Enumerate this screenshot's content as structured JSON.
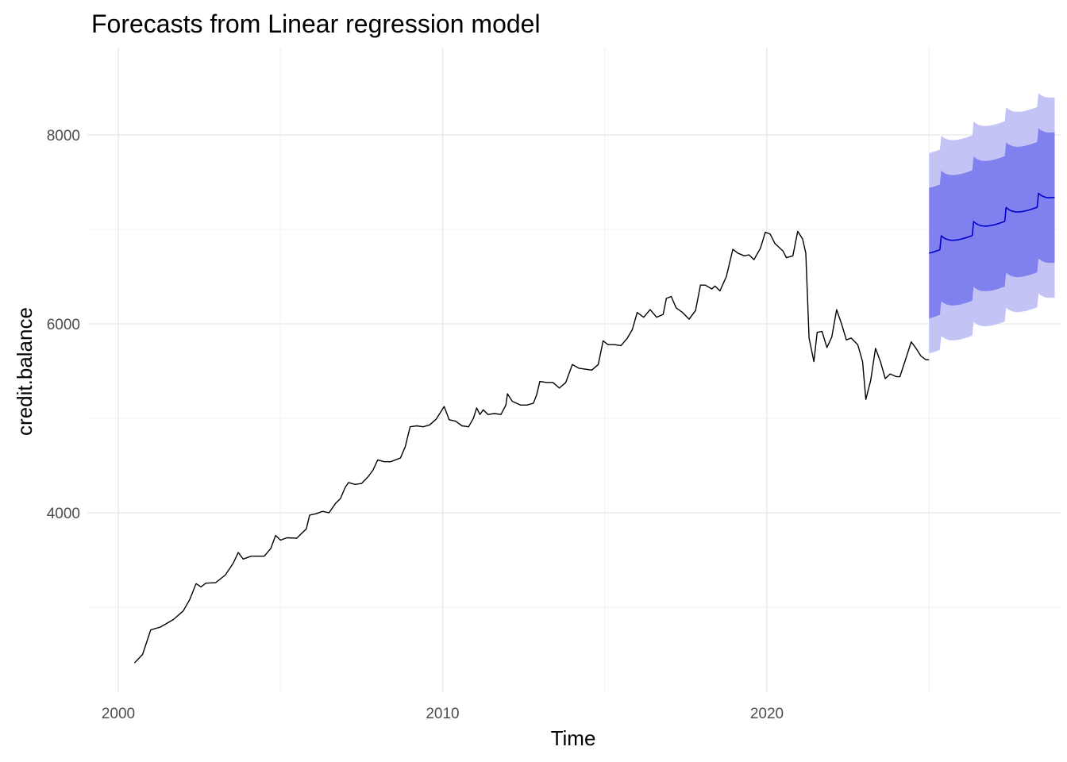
{
  "chart_data": {
    "type": "line",
    "title": "Forecasts from Linear regression model",
    "xlabel": "Time",
    "ylabel": "credit.balance",
    "xlim": [
      1999.5,
      2027.9
    ],
    "ylim": [
      2550,
      8750
    ],
    "x_ticks": [
      2000,
      2010,
      2020
    ],
    "x_tick_labels": [
      "2000",
      "2010",
      "2020"
    ],
    "x_minor_ticks": [
      2005,
      2015,
      2025
    ],
    "y_ticks": [
      4000,
      6000,
      8000
    ],
    "y_tick_labels": [
      "4000",
      "6000",
      "8000"
    ],
    "y_minor_ticks": [
      3000,
      5000,
      7000
    ],
    "grid": true,
    "legend": "none",
    "colors": {
      "history": "#000000",
      "forecast": "#0000cc",
      "band_80": "#8080ee",
      "band_95": "#c3c3f5",
      "grid": "#ebebeb"
    },
    "history_knots": [
      [
        2000.5,
        2410
      ],
      [
        2000.75,
        2500
      ],
      [
        2001.0,
        2760
      ],
      [
        2001.3,
        2790
      ],
      [
        2001.7,
        2870
      ],
      [
        2002.0,
        2960
      ],
      [
        2002.2,
        3080
      ],
      [
        2002.4,
        3250
      ],
      [
        2002.55,
        3215
      ],
      [
        2002.7,
        3255
      ],
      [
        2003.0,
        3260
      ],
      [
        2003.3,
        3340
      ],
      [
        2003.55,
        3470
      ],
      [
        2003.7,
        3580
      ],
      [
        2003.85,
        3510
      ],
      [
        2004.1,
        3540
      ],
      [
        2004.5,
        3540
      ],
      [
        2004.7,
        3620
      ],
      [
        2004.85,
        3760
      ],
      [
        2005.0,
        3710
      ],
      [
        2005.2,
        3735
      ],
      [
        2005.5,
        3730
      ],
      [
        2005.8,
        3830
      ],
      [
        2005.9,
        3975
      ],
      [
        2006.1,
        3990
      ],
      [
        2006.3,
        4015
      ],
      [
        2006.5,
        4000
      ],
      [
        2006.7,
        4100
      ],
      [
        2006.85,
        4150
      ],
      [
        2007.0,
        4270
      ],
      [
        2007.1,
        4320
      ],
      [
        2007.3,
        4300
      ],
      [
        2007.5,
        4310
      ],
      [
        2007.7,
        4380
      ],
      [
        2007.85,
        4450
      ],
      [
        2008.0,
        4560
      ],
      [
        2008.2,
        4540
      ],
      [
        2008.4,
        4540
      ],
      [
        2008.7,
        4580
      ],
      [
        2008.85,
        4700
      ],
      [
        2009.0,
        4910
      ],
      [
        2009.2,
        4920
      ],
      [
        2009.4,
        4910
      ],
      [
        2009.6,
        4930
      ],
      [
        2009.8,
        4990
      ],
      [
        2010.05,
        5125
      ],
      [
        2010.2,
        4985
      ],
      [
        2010.4,
        4970
      ],
      [
        2010.6,
        4920
      ],
      [
        2010.8,
        4910
      ],
      [
        2010.95,
        5000
      ],
      [
        2011.05,
        5110
      ],
      [
        2011.15,
        5040
      ],
      [
        2011.25,
        5090
      ],
      [
        2011.4,
        5040
      ],
      [
        2011.6,
        5050
      ],
      [
        2011.8,
        5040
      ],
      [
        2011.95,
        5140
      ],
      [
        2012.0,
        5260
      ],
      [
        2012.15,
        5180
      ],
      [
        2012.4,
        5140
      ],
      [
        2012.6,
        5140
      ],
      [
        2012.8,
        5160
      ],
      [
        2012.9,
        5250
      ],
      [
        2013.0,
        5390
      ],
      [
        2013.2,
        5380
      ],
      [
        2013.4,
        5380
      ],
      [
        2013.6,
        5320
      ],
      [
        2013.8,
        5380
      ],
      [
        2014.0,
        5570
      ],
      [
        2014.2,
        5530
      ],
      [
        2014.4,
        5520
      ],
      [
        2014.6,
        5510
      ],
      [
        2014.8,
        5570
      ],
      [
        2014.95,
        5820
      ],
      [
        2015.1,
        5780
      ],
      [
        2015.3,
        5780
      ],
      [
        2015.5,
        5770
      ],
      [
        2015.7,
        5850
      ],
      [
        2015.85,
        5940
      ],
      [
        2016.0,
        6120
      ],
      [
        2016.2,
        6070
      ],
      [
        2016.4,
        6150
      ],
      [
        2016.6,
        6070
      ],
      [
        2016.8,
        6100
      ],
      [
        2016.9,
        6270
      ],
      [
        2017.05,
        6290
      ],
      [
        2017.2,
        6170
      ],
      [
        2017.4,
        6120
      ],
      [
        2017.6,
        6050
      ],
      [
        2017.8,
        6140
      ],
      [
        2017.95,
        6410
      ],
      [
        2018.1,
        6410
      ],
      [
        2018.3,
        6370
      ],
      [
        2018.4,
        6400
      ],
      [
        2018.55,
        6350
      ],
      [
        2018.75,
        6500
      ],
      [
        2018.95,
        6790
      ],
      [
        2019.1,
        6750
      ],
      [
        2019.3,
        6720
      ],
      [
        2019.45,
        6730
      ],
      [
        2019.6,
        6680
      ],
      [
        2019.8,
        6800
      ],
      [
        2019.95,
        6970
      ],
      [
        2020.1,
        6950
      ],
      [
        2020.25,
        6850
      ],
      [
        2020.5,
        6770
      ],
      [
        2020.6,
        6700
      ],
      [
        2020.8,
        6720
      ],
      [
        2020.95,
        6980
      ],
      [
        2021.1,
        6900
      ],
      [
        2021.2,
        6750
      ],
      [
        2021.3,
        5850
      ],
      [
        2021.45,
        5600
      ],
      [
        2021.55,
        5910
      ],
      [
        2021.7,
        5920
      ],
      [
        2021.85,
        5750
      ],
      [
        2022.0,
        5860
      ],
      [
        2022.15,
        6150
      ],
      [
        2022.3,
        6000
      ],
      [
        2022.45,
        5830
      ],
      [
        2022.6,
        5850
      ],
      [
        2022.8,
        5780
      ],
      [
        2022.95,
        5600
      ],
      [
        2023.05,
        5200
      ],
      [
        2023.2,
        5400
      ],
      [
        2023.35,
        5740
      ],
      [
        2023.5,
        5600
      ],
      [
        2023.65,
        5420
      ],
      [
        2023.8,
        5470
      ],
      [
        2024.0,
        5440
      ],
      [
        2024.1,
        5440
      ],
      [
        2024.3,
        5650
      ],
      [
        2024.45,
        5810
      ],
      [
        2024.6,
        5740
      ],
      [
        2024.75,
        5660
      ],
      [
        2024.9,
        5620
      ],
      [
        2025.0,
        5620
      ]
    ],
    "forecast": {
      "x_start": 2025.0,
      "x_end": 2028.9,
      "level_start": 6800,
      "trend_per_year": 150,
      "seasonal_amplitude": 160,
      "peak_phase": 0.35,
      "band_80_halfwidth": 690,
      "band_95_halfwidth": 1060
    }
  }
}
